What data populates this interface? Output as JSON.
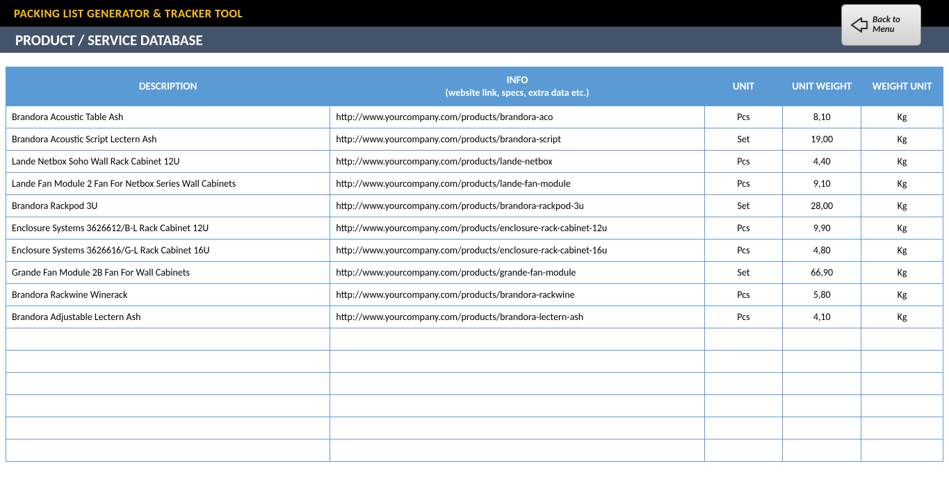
{
  "header": {
    "tool_title": "PACKING LIST GENERATOR & TRACKER TOOL",
    "page_title": "PRODUCT / SERVICE DATABASE",
    "back_label_line1": "Back to",
    "back_label_line2": "Menu"
  },
  "table": {
    "columns": {
      "description": "DESCRIPTION",
      "info_line1": "INFO",
      "info_line2": "(website link, specs, extra data etc.)",
      "unit": "UNIT",
      "unit_weight": "UNIT WEIGHT",
      "weight_unit": "WEIGHT UNIT"
    },
    "rows": [
      {
        "description": "Brandora Acoustic Table Ash",
        "info": "http://www.yourcompany.com/products/brandora-aco",
        "unit": "Pcs",
        "unit_weight": "8,10",
        "weight_unit": "Kg"
      },
      {
        "description": "Brandora Acoustic Script Lectern Ash",
        "info": "http://www.yourcompany.com/products/brandora-script",
        "unit": "Set",
        "unit_weight": "19,00",
        "weight_unit": "Kg"
      },
      {
        "description": "Lande Netbox Soho Wall Rack Cabinet 12U",
        "info": "http://www.yourcompany.com/products/lande-netbox",
        "unit": "Pcs",
        "unit_weight": "4,40",
        "weight_unit": "Kg"
      },
      {
        "description": "Lande Fan Module 2 Fan For Netbox Series Wall Cabinets",
        "info": "http://www.yourcompany.com/products/lande-fan-module",
        "unit": "Pcs",
        "unit_weight": "9,10",
        "weight_unit": "Kg"
      },
      {
        "description": "Brandora Rackpod 3U",
        "info": "http://www.yourcompany.com/products/brandora-rackpod-3u",
        "unit": "Set",
        "unit_weight": "28,00",
        "weight_unit": "Kg"
      },
      {
        "description": "Enclosure Systems 3626612/B-L Rack Cabinet 12U",
        "info": "http://www.yourcompany.com/products/enclosure-rack-cabinet-12u",
        "unit": "Pcs",
        "unit_weight": "9,90",
        "weight_unit": "Kg"
      },
      {
        "description": "Enclosure Systems 3626616/G-L Rack Cabinet 16U",
        "info": "http://www.yourcompany.com/products/enclosure-rack-cabinet-16u",
        "unit": "Pcs",
        "unit_weight": "4,80",
        "weight_unit": "Kg"
      },
      {
        "description": "Grande Fan Module 2B Fan For Wall Cabinets",
        "info": "http://www.yourcompany.com/products/grande-fan-module",
        "unit": "Set",
        "unit_weight": "66,90",
        "weight_unit": "Kg"
      },
      {
        "description": "Brandora Rackwine Winerack",
        "info": "http://www.yourcompany.com/products/brandora-rackwine",
        "unit": "Pcs",
        "unit_weight": "5,80",
        "weight_unit": "Kg"
      },
      {
        "description": "Brandora Adjustable Lectern Ash",
        "info": "http://www.yourcompany.com/products/brandora-lectern-ash",
        "unit": "Pcs",
        "unit_weight": "4,10",
        "weight_unit": "Kg"
      }
    ],
    "empty_rows": 6
  },
  "colors": {
    "banner_bg": "#000000",
    "tool_title_color": "#ffc000",
    "subheader_bg": "#44546a",
    "header_cell_bg": "#5b9bd5",
    "border_color": "#5b9bd5"
  }
}
